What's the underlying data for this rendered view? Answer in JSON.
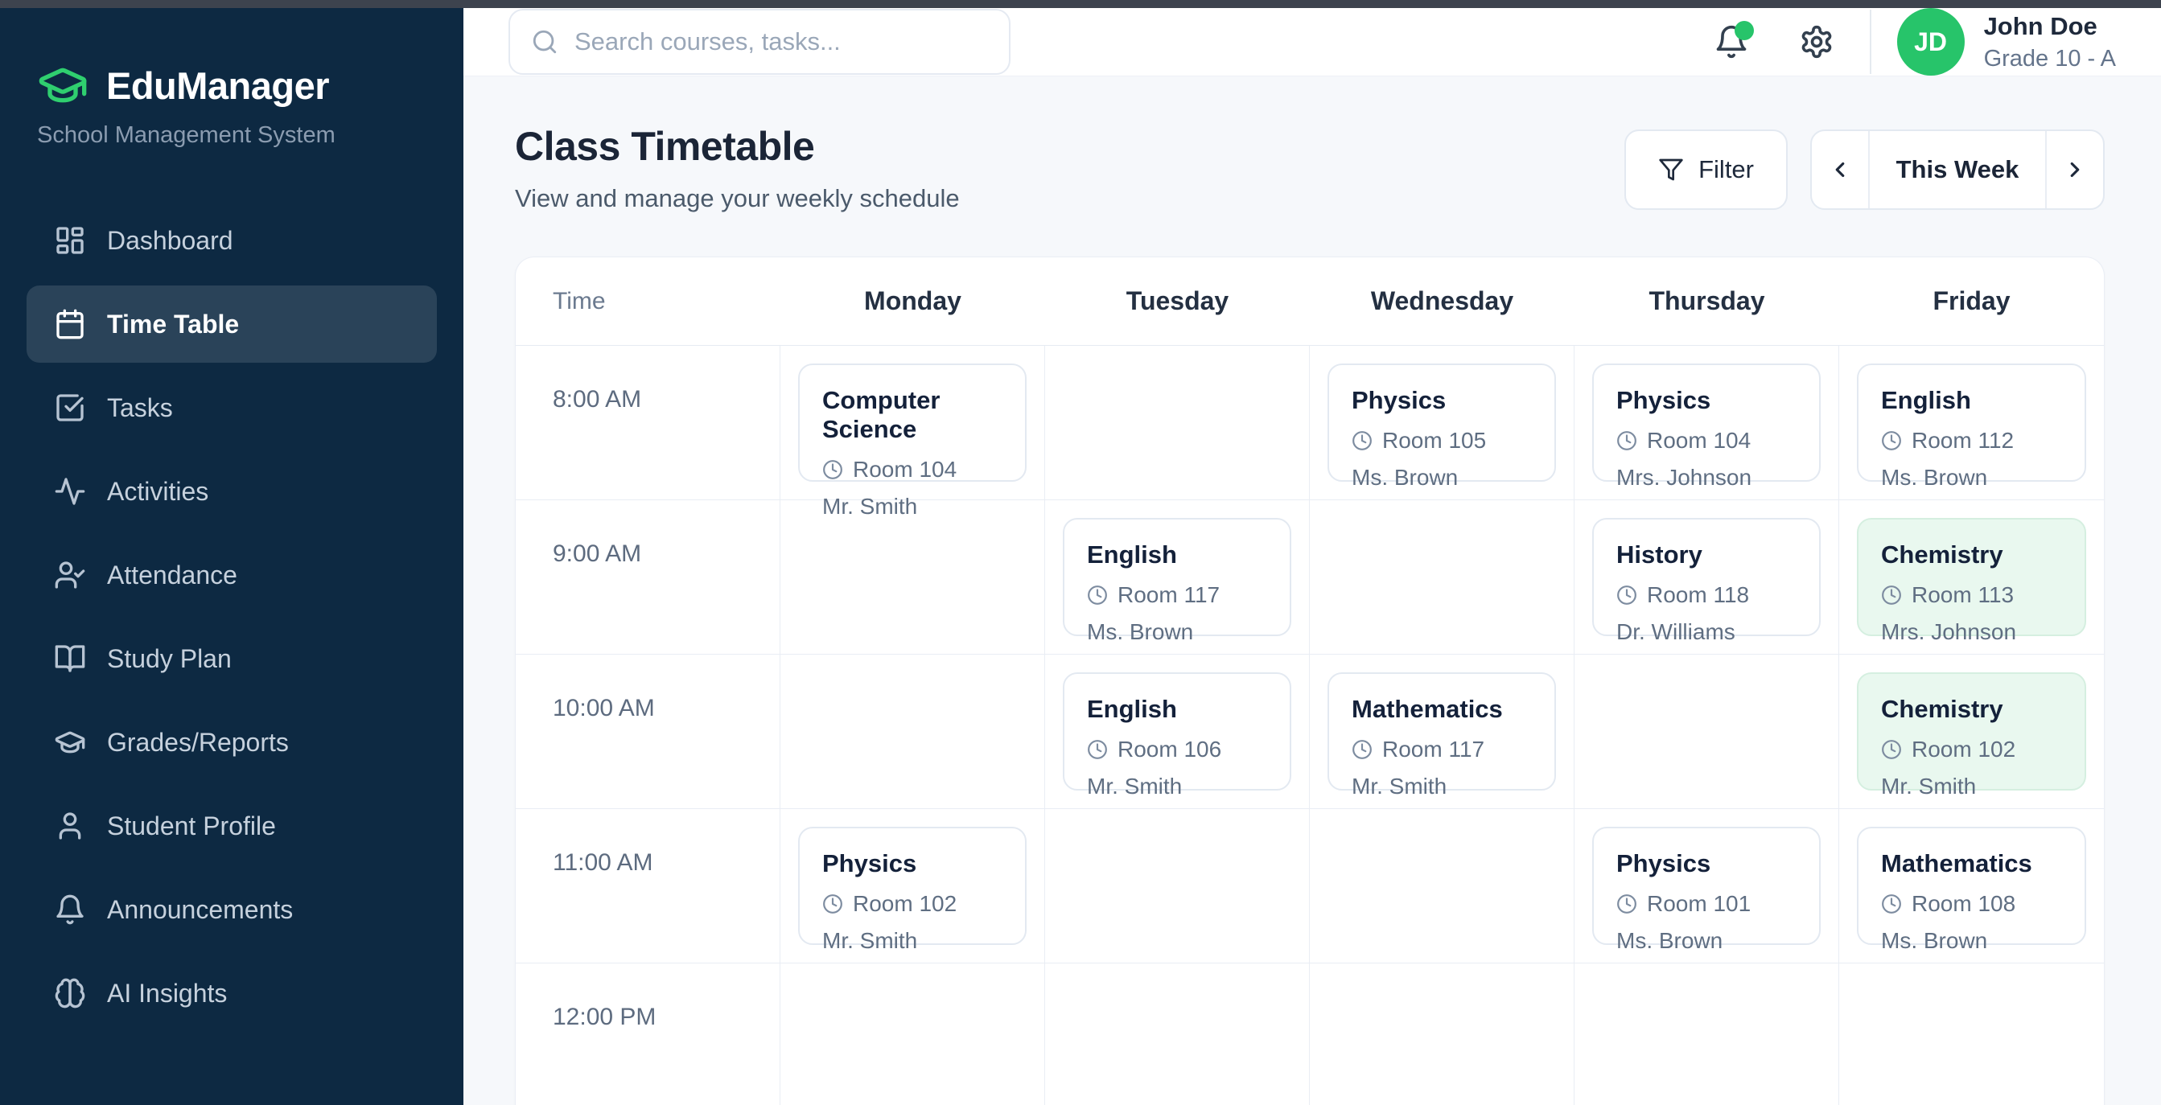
{
  "sidebar": {
    "logo": {
      "icon": "graduation-cap-icon",
      "title": "EduManager",
      "subtitle": "School Management System"
    },
    "items": [
      {
        "label": "Dashboard",
        "icon": "dashboard-icon",
        "active": false
      },
      {
        "label": "Time Table",
        "icon": "calendar-icon",
        "active": true
      },
      {
        "label": "Tasks",
        "icon": "check-square-icon",
        "active": false
      },
      {
        "label": "Activities",
        "icon": "activity-icon",
        "active": false
      },
      {
        "label": "Attendance",
        "icon": "user-check-icon",
        "active": false
      },
      {
        "label": "Study Plan",
        "icon": "book-open-icon",
        "active": false
      },
      {
        "label": "Grades/Reports",
        "icon": "graduation-cap-icon",
        "active": false
      },
      {
        "label": "Student Profile",
        "icon": "user-icon",
        "active": false
      },
      {
        "label": "Announcements",
        "icon": "bell-icon",
        "active": false
      },
      {
        "label": "AI Insights",
        "icon": "brain-icon",
        "active": false
      }
    ]
  },
  "header": {
    "search": {
      "placeholder": "Search courses, tasks...",
      "value": "",
      "icon": "search-icon"
    },
    "notifications": {
      "icon": "bell-icon",
      "has_unread": true
    },
    "settings_icon": "gear-icon",
    "user": {
      "initials": "JD",
      "name": "John Doe",
      "grade": "Grade 10 - A"
    }
  },
  "page": {
    "title": "Class Timetable",
    "subtitle": "View and manage your weekly schedule",
    "filter_label": "Filter",
    "filter_icon": "filter-icon",
    "week_label": "This Week"
  },
  "timetable": {
    "columns": [
      "Time",
      "Monday",
      "Tuesday",
      "Wednesday",
      "Thursday",
      "Friday"
    ],
    "room_icon": "clock-icon",
    "rows": [
      {
        "time": "8:00 AM",
        "cells": [
          {
            "subject": "Computer Science",
            "room": "Room 104",
            "teacher": "Mr. Smith",
            "highlight": false
          },
          null,
          {
            "subject": "Physics",
            "room": "Room 105",
            "teacher": "Ms. Brown",
            "highlight": false
          },
          {
            "subject": "Physics",
            "room": "Room 104",
            "teacher": "Mrs. Johnson",
            "highlight": false
          },
          {
            "subject": "English",
            "room": "Room 112",
            "teacher": "Ms. Brown",
            "highlight": false
          }
        ]
      },
      {
        "time": "9:00 AM",
        "cells": [
          null,
          {
            "subject": "English",
            "room": "Room 117",
            "teacher": "Ms. Brown",
            "highlight": false
          },
          null,
          {
            "subject": "History",
            "room": "Room 118",
            "teacher": "Dr. Williams",
            "highlight": false
          },
          {
            "subject": "Chemistry",
            "room": "Room 113",
            "teacher": "Mrs. Johnson",
            "highlight": true
          }
        ]
      },
      {
        "time": "10:00 AM",
        "cells": [
          null,
          {
            "subject": "English",
            "room": "Room 106",
            "teacher": "Mr. Smith",
            "highlight": false
          },
          {
            "subject": "Mathematics",
            "room": "Room 117",
            "teacher": "Mr. Smith",
            "highlight": false
          },
          null,
          {
            "subject": "Chemistry",
            "room": "Room 102",
            "teacher": "Mr. Smith",
            "highlight": true
          }
        ]
      },
      {
        "time": "11:00 AM",
        "cells": [
          {
            "subject": "Physics",
            "room": "Room 102",
            "teacher": "Mr. Smith",
            "highlight": false
          },
          null,
          null,
          {
            "subject": "Physics",
            "room": "Room 101",
            "teacher": "Ms. Brown",
            "highlight": false
          },
          {
            "subject": "Mathematics",
            "room": "Room 108",
            "teacher": "Ms. Brown",
            "highlight": false
          }
        ]
      },
      {
        "time": "12:00 PM",
        "cells": [
          null,
          null,
          null,
          null,
          null
        ]
      }
    ]
  },
  "colors": {
    "accent_green": "#22c55e",
    "avatar_green": "#27c46a",
    "highlight_card_bg": "#e9f8ef",
    "highlight_card_border": "#d5efe0",
    "sidebar_bg": "#0d2942",
    "page_bg": "#f6f8fb",
    "border": "#e5eaf2"
  }
}
